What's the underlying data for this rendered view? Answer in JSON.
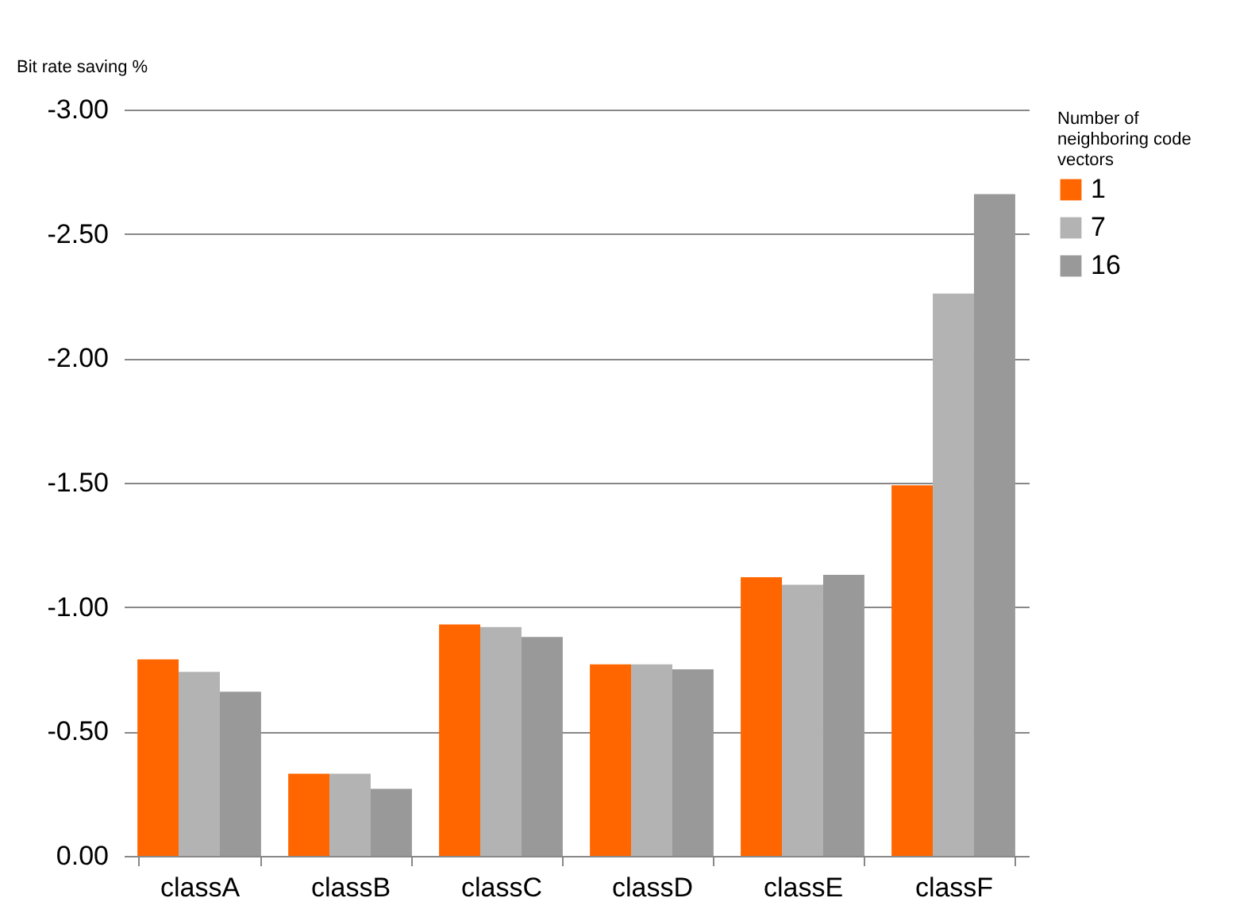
{
  "chart_data": {
    "type": "bar",
    "ylabel": "Bit rate saving %",
    "legend_title": "Number of neighboring code vectors",
    "categories": [
      "classA",
      "classB",
      "classC",
      "classD",
      "classE",
      "classF"
    ],
    "series": [
      {
        "name": "1",
        "color": "#ff6600",
        "values": [
          -0.79,
          -0.33,
          -0.93,
          -0.77,
          -1.12,
          -1.49
        ]
      },
      {
        "name": "7",
        "color": "#b3b3b3",
        "values": [
          -0.74,
          -0.33,
          -0.92,
          -0.77,
          -1.09,
          -2.26
        ]
      },
      {
        "name": "16",
        "color": "#999999",
        "values": [
          -0.66,
          -0.27,
          -0.88,
          -0.75,
          -1.13,
          -2.66
        ]
      }
    ],
    "ylim": [
      0,
      -3
    ],
    "yticks": [
      {
        "value": 0,
        "label": "0.00"
      },
      {
        "value": -0.5,
        "label": "-0.50"
      },
      {
        "value": -1,
        "label": "-1.00"
      },
      {
        "value": -1.5,
        "label": "-1.50"
      },
      {
        "value": -2,
        "label": "-2.00"
      },
      {
        "value": -2.5,
        "label": "-2.50"
      },
      {
        "value": -3,
        "label": "-3.00"
      }
    ],
    "grid": "y",
    "legend": "right"
  }
}
